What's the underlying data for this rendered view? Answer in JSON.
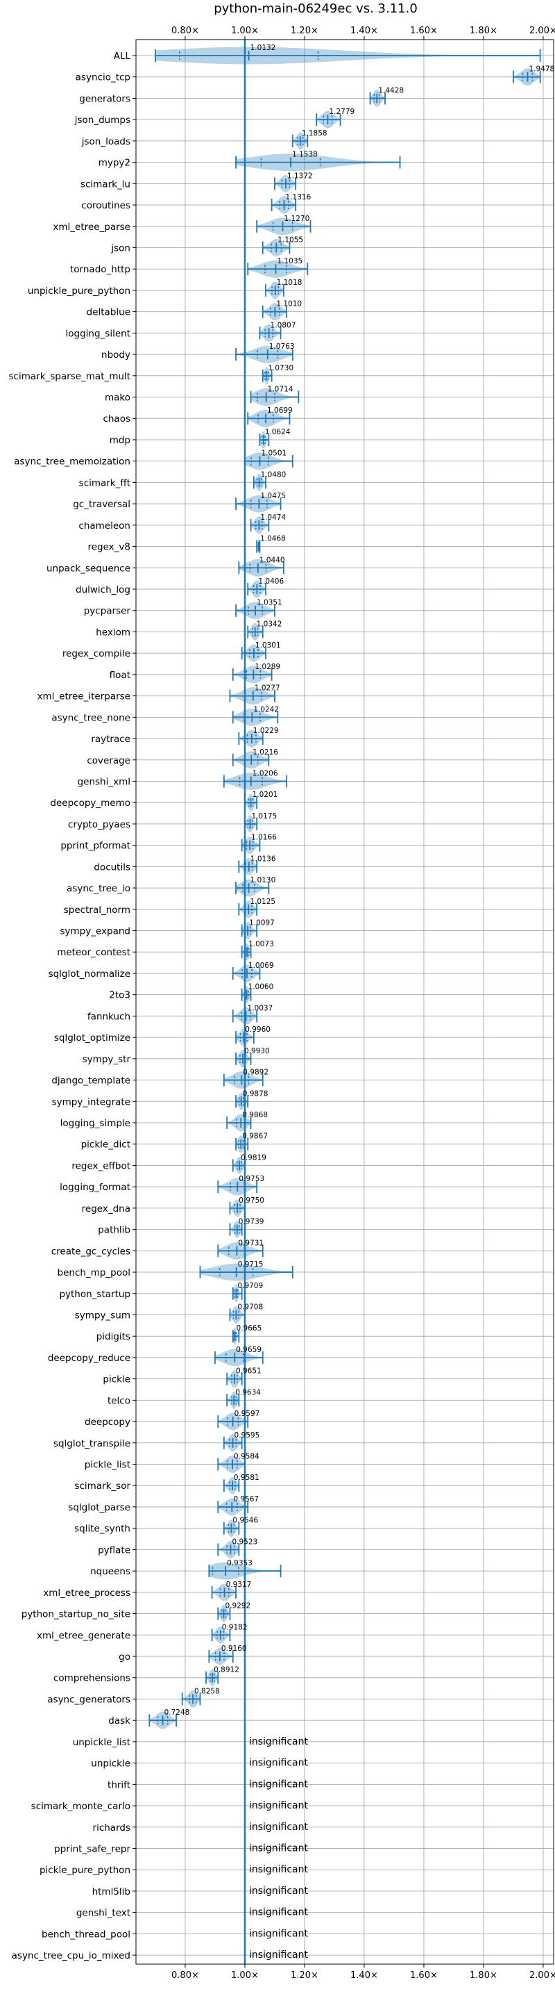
{
  "chart_data": {
    "type": "violin",
    "title": "python-main-06249ec vs. 3.11.0",
    "xlim": [
      0.635,
      2.035
    ],
    "x_ticks": [
      0.8,
      1.0,
      1.2,
      1.4,
      1.6,
      1.8,
      2.0
    ],
    "x_tick_labels": [
      "0.80×",
      "1.00×",
      "1.20×",
      "1.40×",
      "1.60×",
      "1.80×",
      "2.00×"
    ],
    "x_tick_positions": [
      "top",
      "bottom"
    ],
    "grid": true,
    "reference_line": 1.0,
    "insignificant_label": "insignificant",
    "benchmarks": [
      {
        "name": "ALL",
        "value": 1.0132,
        "label": "1.0132",
        "low": 0.7,
        "high": 1.99
      },
      {
        "name": "asyncio_tcp",
        "value": 1.9478,
        "label": "1.9478",
        "low": 1.9,
        "high": 1.99
      },
      {
        "name": "generators",
        "value": 1.4428,
        "label": "1.4428",
        "low": 1.42,
        "high": 1.47
      },
      {
        "name": "json_dumps",
        "value": 1.2779,
        "label": "1.2779",
        "low": 1.24,
        "high": 1.32
      },
      {
        "name": "json_loads",
        "value": 1.1858,
        "label": "1.1858",
        "low": 1.16,
        "high": 1.21
      },
      {
        "name": "mypy2",
        "value": 1.1538,
        "label": "1.1538",
        "low": 0.97,
        "high": 1.52
      },
      {
        "name": "scimark_lu",
        "value": 1.1372,
        "label": "1.1372",
        "low": 1.1,
        "high": 1.17
      },
      {
        "name": "coroutines",
        "value": 1.1316,
        "label": "1.1316",
        "low": 1.09,
        "high": 1.17
      },
      {
        "name": "xml_etree_parse",
        "value": 1.127,
        "label": "1.1270",
        "low": 1.04,
        "high": 1.22
      },
      {
        "name": "json",
        "value": 1.1055,
        "label": "1.1055",
        "low": 1.06,
        "high": 1.15
      },
      {
        "name": "tornado_http",
        "value": 1.1035,
        "label": "1.1035",
        "low": 1.01,
        "high": 1.21
      },
      {
        "name": "unpickle_pure_python",
        "value": 1.1018,
        "label": "1.1018",
        "low": 1.07,
        "high": 1.13
      },
      {
        "name": "deltablue",
        "value": 1.101,
        "label": "1.1010",
        "low": 1.06,
        "high": 1.14
      },
      {
        "name": "logging_silent",
        "value": 1.0807,
        "label": "1.0807",
        "low": 1.05,
        "high": 1.12
      },
      {
        "name": "nbody",
        "value": 1.0763,
        "label": "1.0763",
        "low": 0.97,
        "high": 1.16
      },
      {
        "name": "scimark_sparse_mat_mult",
        "value": 1.073,
        "label": "1.0730",
        "low": 1.06,
        "high": 1.09
      },
      {
        "name": "mako",
        "value": 1.0714,
        "label": "1.0714",
        "low": 1.02,
        "high": 1.18
      },
      {
        "name": "chaos",
        "value": 1.0699,
        "label": "1.0699",
        "low": 1.01,
        "high": 1.15
      },
      {
        "name": "mdp",
        "value": 1.0624,
        "label": "1.0624",
        "low": 1.05,
        "high": 1.08
      },
      {
        "name": "async_tree_memoization",
        "value": 1.0501,
        "label": "1.0501",
        "low": 1.0,
        "high": 1.16
      },
      {
        "name": "scimark_fft",
        "value": 1.048,
        "label": "1.0480",
        "low": 1.03,
        "high": 1.07
      },
      {
        "name": "gc_traversal",
        "value": 1.0475,
        "label": "1.0475",
        "low": 0.97,
        "high": 1.12
      },
      {
        "name": "chameleon",
        "value": 1.0474,
        "label": "1.0474",
        "low": 1.02,
        "high": 1.08
      },
      {
        "name": "regex_v8",
        "value": 1.0468,
        "label": "1.0468",
        "low": 1.04,
        "high": 1.05
      },
      {
        "name": "unpack_sequence",
        "value": 1.044,
        "label": "1.0440",
        "low": 0.98,
        "high": 1.13
      },
      {
        "name": "dulwich_log",
        "value": 1.0406,
        "label": "1.0406",
        "low": 1.01,
        "high": 1.07
      },
      {
        "name": "pycparser",
        "value": 1.0351,
        "label": "1.0351",
        "low": 0.97,
        "high": 1.1
      },
      {
        "name": "hexiom",
        "value": 1.0342,
        "label": "1.0342",
        "low": 1.01,
        "high": 1.06
      },
      {
        "name": "regex_compile",
        "value": 1.0301,
        "label": "1.0301",
        "low": 0.99,
        "high": 1.07
      },
      {
        "name": "float",
        "value": 1.0289,
        "label": "1.0289",
        "low": 0.96,
        "high": 1.09
      },
      {
        "name": "xml_etree_iterparse",
        "value": 1.0277,
        "label": "1.0277",
        "low": 0.95,
        "high": 1.1
      },
      {
        "name": "async_tree_none",
        "value": 1.0242,
        "label": "1.0242",
        "low": 0.96,
        "high": 1.11
      },
      {
        "name": "raytrace",
        "value": 1.0229,
        "label": "1.0229",
        "low": 0.98,
        "high": 1.06
      },
      {
        "name": "coverage",
        "value": 1.0216,
        "label": "1.0216",
        "low": 0.96,
        "high": 1.08
      },
      {
        "name": "genshi_xml",
        "value": 1.0206,
        "label": "1.0206",
        "low": 0.93,
        "high": 1.14
      },
      {
        "name": "deepcopy_memo",
        "value": 1.0201,
        "label": "1.0201",
        "low": 1.0,
        "high": 1.04
      },
      {
        "name": "crypto_pyaes",
        "value": 1.0175,
        "label": "1.0175",
        "low": 1.0,
        "high": 1.04
      },
      {
        "name": "pprint_pformat",
        "value": 1.0166,
        "label": "1.0166",
        "low": 0.99,
        "high": 1.05
      },
      {
        "name": "docutils",
        "value": 1.0136,
        "label": "1.0136",
        "low": 0.98,
        "high": 1.04
      },
      {
        "name": "async_tree_io",
        "value": 1.013,
        "label": "1.0130",
        "low": 0.97,
        "high": 1.08
      },
      {
        "name": "spectral_norm",
        "value": 1.0125,
        "label": "1.0125",
        "low": 0.98,
        "high": 1.04
      },
      {
        "name": "sympy_expand",
        "value": 1.0097,
        "label": "1.0097",
        "low": 0.99,
        "high": 1.04
      },
      {
        "name": "meteor_contest",
        "value": 1.0073,
        "label": "1.0073",
        "low": 0.99,
        "high": 1.02
      },
      {
        "name": "sqlglot_normalize",
        "value": 1.0069,
        "label": "1.0069",
        "low": 0.96,
        "high": 1.05
      },
      {
        "name": "2to3",
        "value": 1.006,
        "label": "1.0060",
        "low": 0.99,
        "high": 1.02
      },
      {
        "name": "fannkuch",
        "value": 1.0037,
        "label": "1.0037",
        "low": 0.96,
        "high": 1.04
      },
      {
        "name": "sqlglot_optimize",
        "value": 0.996,
        "label": "0.9960",
        "low": 0.97,
        "high": 1.03
      },
      {
        "name": "sympy_str",
        "value": 0.993,
        "label": "0.9930",
        "low": 0.97,
        "high": 1.02
      },
      {
        "name": "django_template",
        "value": 0.9892,
        "label": "0.9892",
        "low": 0.93,
        "high": 1.06
      },
      {
        "name": "sympy_integrate",
        "value": 0.9878,
        "label": "0.9878",
        "low": 0.97,
        "high": 1.01
      },
      {
        "name": "logging_simple",
        "value": 0.9868,
        "label": "0.9868",
        "low": 0.94,
        "high": 1.02
      },
      {
        "name": "pickle_dict",
        "value": 0.9867,
        "label": "0.9867",
        "low": 0.97,
        "high": 1.01
      },
      {
        "name": "regex_effbot",
        "value": 0.9819,
        "label": "0.9819",
        "low": 0.96,
        "high": 1.0
      },
      {
        "name": "logging_format",
        "value": 0.9753,
        "label": "0.9753",
        "low": 0.91,
        "high": 1.04
      },
      {
        "name": "regex_dna",
        "value": 0.975,
        "label": "0.9750",
        "low": 0.95,
        "high": 1.0
      },
      {
        "name": "pathlib",
        "value": 0.9739,
        "label": "0.9739",
        "low": 0.95,
        "high": 0.99
      },
      {
        "name": "create_gc_cycles",
        "value": 0.9731,
        "label": "0.9731",
        "low": 0.91,
        "high": 1.06
      },
      {
        "name": "bench_mp_pool",
        "value": 0.9715,
        "label": "0.9715",
        "low": 0.85,
        "high": 1.16
      },
      {
        "name": "python_startup",
        "value": 0.9709,
        "label": "0.9709",
        "low": 0.96,
        "high": 0.99
      },
      {
        "name": "sympy_sum",
        "value": 0.9708,
        "label": "0.9708",
        "low": 0.95,
        "high": 1.0
      },
      {
        "name": "pidigits",
        "value": 0.9665,
        "label": "0.9665",
        "low": 0.96,
        "high": 0.98
      },
      {
        "name": "deepcopy_reduce",
        "value": 0.9659,
        "label": "0.9659",
        "low": 0.9,
        "high": 1.06
      },
      {
        "name": "pickle",
        "value": 0.9651,
        "label": "0.9651",
        "low": 0.94,
        "high": 0.99
      },
      {
        "name": "telco",
        "value": 0.9634,
        "label": "0.9634",
        "low": 0.94,
        "high": 0.98
      },
      {
        "name": "deepcopy",
        "value": 0.9597,
        "label": "0.9597",
        "low": 0.91,
        "high": 1.01
      },
      {
        "name": "sqlglot_transpile",
        "value": 0.9595,
        "label": "0.9595",
        "low": 0.93,
        "high": 0.99
      },
      {
        "name": "pickle_list",
        "value": 0.9584,
        "label": "0.9584",
        "low": 0.91,
        "high": 1.0
      },
      {
        "name": "scimark_sor",
        "value": 0.9581,
        "label": "0.9581",
        "low": 0.93,
        "high": 0.98
      },
      {
        "name": "sqlglot_parse",
        "value": 0.9567,
        "label": "0.9567",
        "low": 0.91,
        "high": 1.01
      },
      {
        "name": "sqlite_synth",
        "value": 0.9546,
        "label": "0.9546",
        "low": 0.93,
        "high": 0.98
      },
      {
        "name": "pyflate",
        "value": 0.9523,
        "label": "0.9523",
        "low": 0.91,
        "high": 0.98
      },
      {
        "name": "nqueens",
        "value": 0.9353,
        "label": "0.9353",
        "low": 0.88,
        "high": 1.12
      },
      {
        "name": "xml_etree_process",
        "value": 0.9317,
        "label": "0.9317",
        "low": 0.89,
        "high": 0.97
      },
      {
        "name": "python_startup_no_site",
        "value": 0.9292,
        "label": "0.9292",
        "low": 0.91,
        "high": 0.95
      },
      {
        "name": "xml_etree_generate",
        "value": 0.9182,
        "label": "0.9182",
        "low": 0.89,
        "high": 0.95
      },
      {
        "name": "go",
        "value": 0.916,
        "label": "0.9160",
        "low": 0.88,
        "high": 0.96
      },
      {
        "name": "comprehensions",
        "value": 0.8912,
        "label": "0.8912",
        "low": 0.87,
        "high": 0.91
      },
      {
        "name": "async_generators",
        "value": 0.8258,
        "label": "0.8258",
        "low": 0.79,
        "high": 0.85
      },
      {
        "name": "dask",
        "value": 0.7248,
        "label": "0.7248",
        "low": 0.68,
        "high": 0.77
      },
      {
        "name": "unpickle_list",
        "value": null,
        "label": "insignificant"
      },
      {
        "name": "unpickle",
        "value": null,
        "label": "insignificant"
      },
      {
        "name": "thrift",
        "value": null,
        "label": "insignificant"
      },
      {
        "name": "scimark_monte_carlo",
        "value": null,
        "label": "insignificant"
      },
      {
        "name": "richards",
        "value": null,
        "label": "insignificant"
      },
      {
        "name": "pprint_safe_repr",
        "value": null,
        "label": "insignificant"
      },
      {
        "name": "pickle_pure_python",
        "value": null,
        "label": "insignificant"
      },
      {
        "name": "html5lib",
        "value": null,
        "label": "insignificant"
      },
      {
        "name": "genshi_text",
        "value": null,
        "label": "insignificant"
      },
      {
        "name": "bench_thread_pool",
        "value": null,
        "label": "insignificant"
      },
      {
        "name": "async_tree_cpu_io_mixed",
        "value": null,
        "label": "insignificant"
      }
    ]
  }
}
